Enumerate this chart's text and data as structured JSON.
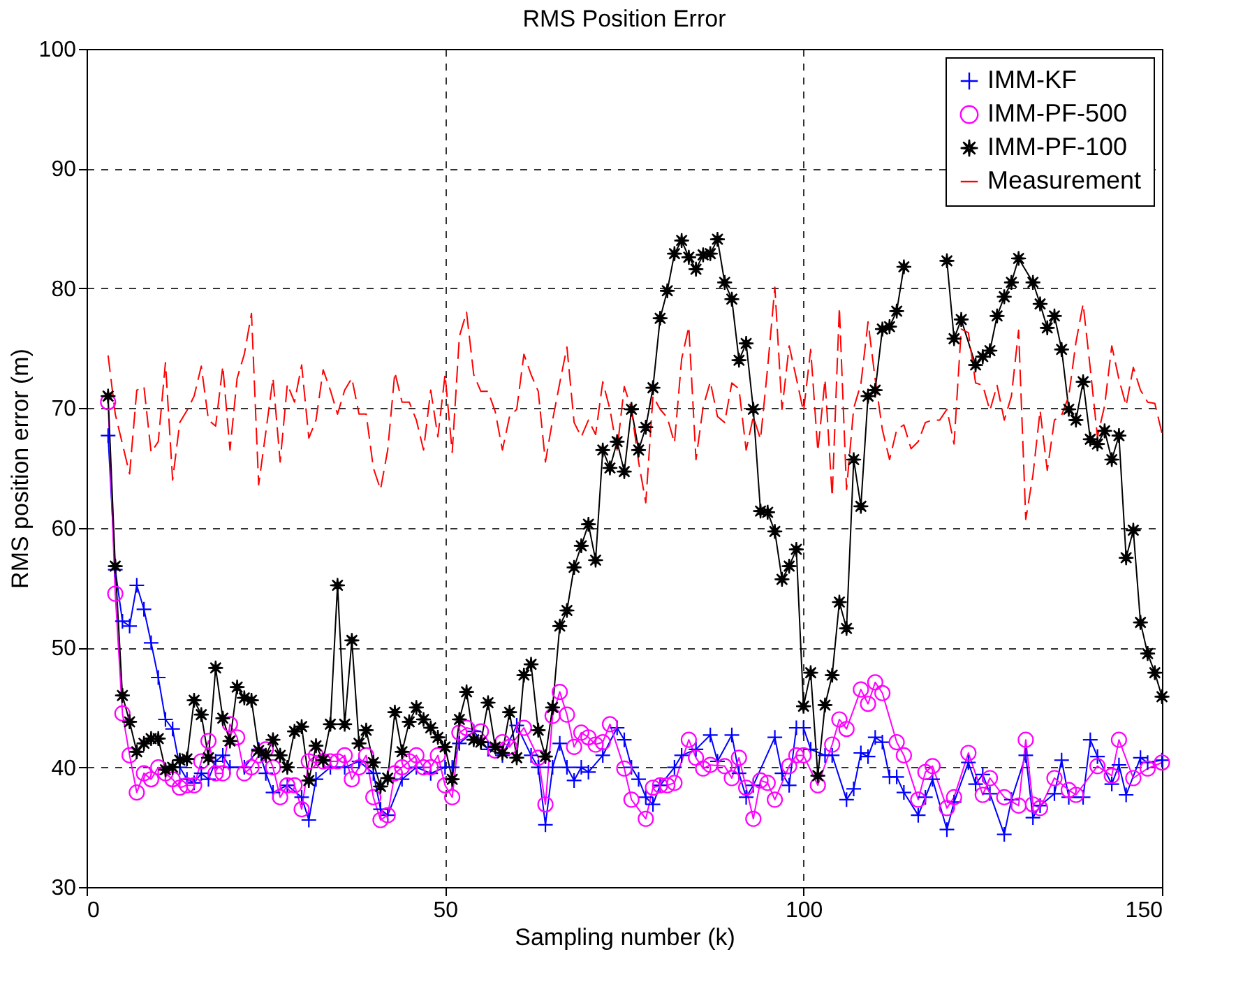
{
  "chart_data": {
    "type": "line",
    "title": "RMS Position Error",
    "xlabel": "Sampling number (k)",
    "ylabel": "RMS position error (m)",
    "xlim": [
      0,
      150
    ],
    "xticks": [
      0,
      50,
      100,
      150
    ],
    "ylim": [
      30,
      100
    ],
    "yticks": [
      30,
      40,
      50,
      60,
      70,
      80,
      90,
      100
    ],
    "grid": true,
    "legend": "top right",
    "series": [
      {
        "name": "IMM-KF",
        "color": "#0000ff",
        "marker": "cross",
        "line_style": "solid",
        "x": [
          3,
          4,
          5,
          6,
          7,
          8,
          9,
          10,
          11,
          12,
          13,
          14,
          15,
          16,
          17,
          18,
          19,
          20,
          22,
          24,
          25,
          26,
          28,
          30,
          31,
          32,
          34,
          36,
          38,
          40,
          41,
          42,
          44,
          46,
          48,
          50,
          51,
          52,
          54,
          56,
          58,
          60,
          62,
          63,
          64,
          65,
          66,
          67,
          68,
          69,
          70,
          72,
          74,
          75,
          76,
          77,
          78,
          79,
          80,
          82,
          83,
          85,
          87,
          88,
          90,
          91,
          92,
          93,
          96,
          97,
          98,
          99,
          100,
          101,
          103,
          104,
          106,
          107,
          108,
          109,
          110,
          111,
          112,
          113,
          114,
          116,
          117,
          118,
          120,
          121,
          123,
          124,
          125,
          126,
          128,
          129,
          131,
          132,
          133,
          135,
          136,
          137,
          139,
          140,
          141,
          143,
          144,
          145,
          147,
          148,
          150
        ],
        "values": [
          67.7,
          56.5,
          52.2,
          51.8,
          55.2,
          53.2,
          50.4,
          47.5,
          44,
          43.2,
          40,
          39,
          38.7,
          39.5,
          39,
          40.5,
          41,
          40,
          40,
          41.5,
          39.5,
          37.9,
          38.5,
          37.5,
          35.6,
          39,
          40,
          40,
          40.5,
          39.5,
          36.5,
          36,
          39,
          40,
          39.5,
          40,
          40,
          42,
          43,
          41.5,
          41,
          43.5,
          41,
          40,
          35.2,
          40,
          42,
          40,
          38.9,
          40,
          39.6,
          41,
          43.3,
          42.3,
          40,
          39,
          37.5,
          36.9,
          38.5,
          40,
          41,
          41.5,
          42.7,
          40.5,
          42.7,
          39.5,
          37.5,
          38.5,
          42.5,
          39.5,
          38.5,
          43.3,
          43.3,
          41.5,
          41,
          41,
          37.3,
          38.2,
          41.2,
          40.9,
          42.5,
          42.1,
          39.2,
          39.2,
          37.9,
          36,
          37.5,
          39,
          34.8,
          37.1,
          40.4,
          38.6,
          39.4,
          37.8,
          34.4,
          37.3,
          41,
          35.8,
          36.8,
          37.8,
          40.6,
          37.5,
          37.5,
          42.3,
          40.9,
          38.6,
          40.2,
          37.7,
          40.8,
          40.4,
          40.6
        ]
      },
      {
        "name": "IMM-PF-500",
        "color": "#ff00ff",
        "marker": "circle",
        "line_style": "solid",
        "x": [
          3,
          4,
          5,
          6,
          7,
          8,
          9,
          10,
          11,
          12,
          13,
          14,
          15,
          16,
          17,
          18,
          19,
          20,
          21,
          22,
          23,
          24,
          25,
          26,
          27,
          28,
          29,
          30,
          31,
          32,
          33,
          34,
          35,
          36,
          37,
          38,
          39,
          40,
          41,
          42,
          43,
          44,
          45,
          46,
          47,
          48,
          49,
          50,
          51,
          52,
          53,
          55,
          57,
          58,
          59,
          61,
          63,
          64,
          65,
          66,
          67,
          68,
          69,
          70,
          71,
          72,
          73,
          75,
          76,
          78,
          79,
          80,
          81,
          82,
          84,
          85,
          86,
          87,
          89,
          90,
          91,
          92,
          93,
          94,
          95,
          96,
          98,
          99,
          100,
          102,
          104,
          105,
          106,
          108,
          109,
          110,
          111,
          113,
          114,
          116,
          117,
          118,
          120,
          121,
          123,
          125,
          126,
          128,
          130,
          131,
          132,
          133,
          135,
          137,
          138,
          141,
          143,
          144,
          146,
          148,
          150
        ],
        "values": [
          70.5,
          54.5,
          44.5,
          41,
          37.9,
          39.5,
          39,
          40,
          39.5,
          39,
          38.3,
          38.5,
          38.5,
          40.5,
          42.2,
          39.5,
          39.5,
          43.6,
          42.5,
          39.5,
          40,
          41,
          41.5,
          40,
          37.5,
          38.5,
          38.5,
          36.5,
          40.5,
          41,
          40.5,
          40.5,
          40.5,
          41,
          39,
          40,
          41,
          37.5,
          35.6,
          36,
          39.5,
          40,
          40.5,
          41,
          40,
          40,
          41,
          38.5,
          37.5,
          42.9,
          43.3,
          43,
          41.4,
          42.1,
          41.7,
          43.3,
          40.8,
          36.9,
          44.3,
          46.3,
          44.4,
          41.7,
          42.9,
          42.5,
          41.9,
          42.1,
          43.6,
          39.9,
          37.3,
          35.7,
          38.3,
          38.5,
          38.5,
          38.7,
          42.3,
          40.8,
          39.9,
          40.2,
          40.1,
          39.1,
          40.8,
          38.3,
          35.7,
          38.9,
          38.7,
          37.3,
          40.1,
          41,
          41,
          38.5,
          41.9,
          44,
          43.2,
          46.5,
          45.3,
          47.1,
          46.2,
          42.1,
          41,
          37.3,
          39.6,
          40.1,
          36.6,
          37.5,
          41.2,
          37.7,
          39.1,
          37.5,
          36.8,
          42.3,
          36.9,
          36.6,
          39.1,
          38.1,
          37.7,
          40.1,
          39.3,
          42.3,
          39.1,
          39.9,
          40.4
        ]
      },
      {
        "name": "IMM-PF-100",
        "color": "#000000",
        "marker": "star",
        "line_style": "solid",
        "x": [
          3,
          4,
          5,
          6,
          7,
          8,
          9,
          10,
          11,
          12,
          13,
          14,
          15,
          16,
          17,
          18,
          19,
          20,
          21,
          22,
          23,
          24,
          25,
          26,
          27,
          28,
          29,
          30,
          31,
          32,
          33,
          34,
          35,
          36,
          37,
          38,
          39,
          40,
          41,
          42,
          43,
          44,
          45,
          46,
          47,
          48,
          49,
          50,
          51,
          52,
          53,
          54,
          55,
          56,
          57,
          58,
          59,
          60,
          61,
          62,
          63,
          64,
          65,
          66,
          67,
          68,
          69,
          70,
          71,
          72,
          73,
          74,
          75,
          76,
          77,
          78,
          79,
          80,
          81,
          82,
          83,
          84,
          85,
          86,
          87,
          88,
          89,
          90,
          91,
          92,
          93,
          94,
          95,
          96,
          97,
          98,
          99,
          100,
          101,
          102,
          103,
          104,
          105,
          106,
          107,
          108,
          109,
          110,
          111,
          112,
          113,
          114,
          115,
          116,
          117,
          118,
          119,
          120,
          121,
          122,
          124,
          125,
          126,
          127,
          128,
          129,
          130,
          132,
          133,
          134,
          135,
          136,
          137,
          138,
          139,
          140,
          141,
          142,
          143,
          144,
          145,
          146,
          147,
          148,
          149,
          150
        ],
        "values": [
          71,
          56.8,
          46,
          43.8,
          41.3,
          42,
          42.4,
          42.4,
          39.8,
          40,
          40.6,
          40.7,
          45.6,
          44.4,
          40.8,
          48.3,
          44.1,
          42.2,
          46.7,
          45.8,
          45.6,
          41.4,
          41,
          42.3,
          41,
          40,
          43,
          43.4,
          38.9,
          41.8,
          40.6,
          43.6,
          55.2,
          43.6,
          50.6,
          42,
          43.1,
          40.4,
          38.4,
          39.1,
          44.6,
          41.3,
          43.8,
          45,
          44,
          43.3,
          42.5,
          41.7,
          39,
          44,
          46.3,
          42.3,
          42.1,
          45.4,
          41.7,
          41.2,
          44.6,
          40.8,
          47.7,
          48.6,
          43.1,
          40.9,
          45,
          51.8,
          53.1,
          56.7,
          58.5,
          60.3,
          57.3,
          66.5,
          65,
          67.2,
          64.7,
          69.9,
          66.5,
          68.4,
          71.7,
          77.5,
          79.8,
          82.9,
          84,
          82.6,
          81.6,
          82.8,
          82.9,
          84.1,
          80.5,
          79.1,
          74,
          75.4,
          69.9,
          61.4,
          61.3,
          59.7,
          55.7,
          56.8,
          58.2,
          45.1,
          47.9,
          39.3,
          45.2,
          47.7,
          53.8,
          51.6,
          65.7,
          61.8,
          71,
          71.5,
          76.6,
          76.8,
          78.1,
          81.8,
          null,
          null,
          null,
          null,
          null,
          82.3,
          75.8,
          77.4,
          73.6,
          74.3,
          74.8,
          77.7,
          79.3,
          80.5,
          82.5,
          80.5,
          78.7,
          76.7,
          77.7,
          74.9,
          69.9,
          69,
          72.2,
          67.4,
          67,
          68.1,
          65.7,
          67.7,
          57.5,
          59.8,
          52.1,
          49.5,
          47.9,
          45.9
        ]
      },
      {
        "name": "Measurement",
        "color": "#ff0000",
        "marker": "none",
        "line_style": "dashed",
        "x": [
          3,
          4,
          5,
          6,
          7,
          8,
          9,
          10,
          11,
          12,
          13,
          14,
          15,
          16,
          17,
          18,
          19,
          20,
          21,
          22,
          23,
          24,
          25,
          26,
          27,
          28,
          29,
          30,
          31,
          32,
          33,
          34,
          35,
          36,
          37,
          38,
          39,
          40,
          41,
          42,
          43,
          44,
          45,
          46,
          47,
          48,
          49,
          50,
          51,
          52,
          53,
          54,
          55,
          56,
          57,
          58,
          59,
          60,
          61,
          62,
          63,
          64,
          65,
          66,
          67,
          68,
          69,
          70,
          71,
          72,
          73,
          74,
          75,
          76,
          77,
          78,
          79,
          80,
          81,
          82,
          83,
          84,
          85,
          86,
          87,
          88,
          89,
          90,
          91,
          92,
          93,
          94,
          95,
          96,
          97,
          98,
          99,
          100,
          101,
          102,
          103,
          104,
          105,
          106,
          107,
          108,
          109,
          110,
          111,
          112,
          113,
          114,
          115,
          116,
          117,
          118,
          119,
          120,
          121,
          122,
          123,
          124,
          125,
          126,
          127,
          128,
          129,
          130,
          131,
          132,
          133,
          134,
          135,
          136,
          137,
          138,
          139,
          140,
          141,
          142,
          143,
          144,
          145,
          146,
          147,
          148,
          149,
          150
        ],
        "values": [
          74.4,
          69.5,
          67,
          64.5,
          71.5,
          71.8,
          66.3,
          67.2,
          73.8,
          64,
          68.8,
          69.8,
          71,
          73.5,
          69,
          68.5,
          73.5,
          66.5,
          72.5,
          74.5,
          77.9,
          63.6,
          68,
          72.5,
          65.5,
          72,
          70.5,
          73.6,
          67.5,
          69,
          73.2,
          71.5,
          69.5,
          71.5,
          72.5,
          69.5,
          69.5,
          65,
          63.2,
          66.5,
          73,
          70.5,
          70.5,
          69,
          66.5,
          71.5,
          67.6,
          72.8,
          66.3,
          76,
          78,
          72.8,
          71.4,
          71.4,
          69.7,
          66.5,
          69.3,
          69.9,
          74.5,
          72.8,
          71.4,
          65.5,
          69,
          72.1,
          75.1,
          68.8,
          67.6,
          69,
          67.8,
          72.2,
          69.9,
          66.5,
          71.8,
          69.9,
          65.5,
          62.1,
          71,
          69.9,
          69.2,
          67.1,
          74.1,
          76.8,
          65.7,
          70.1,
          72.2,
          69.3,
          68.8,
          72.1,
          71.6,
          66.5,
          69.3,
          67.4,
          73.4,
          80.1,
          69.9,
          75.2,
          72.5,
          69.7,
          74.9,
          66.4,
          72.4,
          62.6,
          78.4,
          63.2,
          70,
          72,
          77.2,
          72.4,
          68.2,
          65.7,
          68.2,
          68.6,
          66.6,
          67.2,
          68.8,
          69,
          69,
          69.9,
          67,
          76.6,
          76.3,
          72.1,
          71.9,
          69.8,
          71.9,
          69,
          71,
          76.5,
          60.7,
          64.4,
          69.8,
          64.8,
          69,
          69.4,
          71,
          75.5,
          78.7,
          73.3,
          67.6,
          70.2,
          75.2,
          72.4,
          70.2,
          73.4,
          71.5,
          70.5,
          70.4,
          67.9
        ]
      }
    ]
  }
}
